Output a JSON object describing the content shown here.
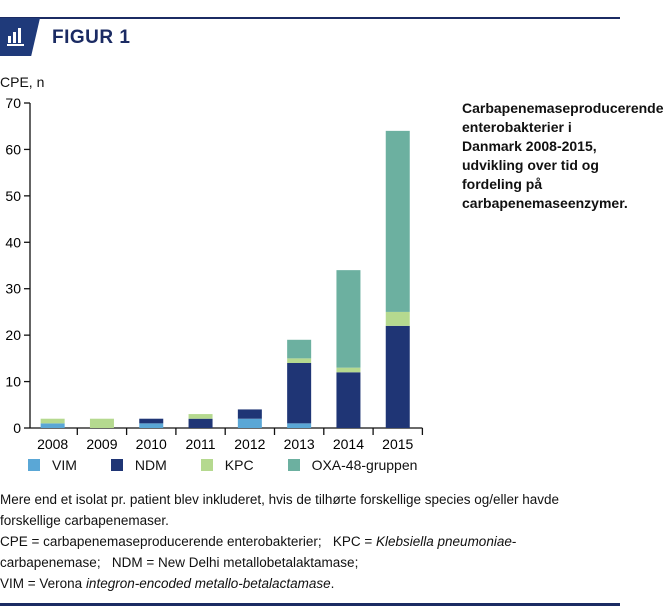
{
  "header": {
    "title": "FIGUR 1",
    "icon": "bar-chart-icon"
  },
  "caption": "Carbapenemaseproducerende enterobakterier i Danmark 2008-2015, udvikling over tid og fordeling på carbapenemaseenzymer.",
  "notes": {
    "line1": "Mere end et isolat pr. patient blev inkluderet, hvis de tilhørte forskellige species og/eller havde forskellige carbapenemaser.",
    "line2": "CPE = carbapenemaseproducerende enterobakterier;",
    "kpc_pre": "KPC = ",
    "kpc_it": "Klebsiella pneumoniae",
    "kpc_post": "-carbapenemase;",
    "ndm": "NDM = New Delhi metallobetalaktamase;",
    "vim_pre": "VIM = Verona ",
    "vim_it": "integron-encoded metallo-betalactamase",
    "vim_post": "."
  },
  "chart_data": {
    "type": "bar",
    "stacked": true,
    "ylabel": "CPE, n",
    "ylim": [
      0,
      70
    ],
    "yticks": [
      0,
      10,
      20,
      30,
      40,
      50,
      60,
      70
    ],
    "categories": [
      "2008",
      "2009",
      "2010",
      "2011",
      "2012",
      "2013",
      "2014",
      "2015"
    ],
    "series": [
      {
        "name": "VIM",
        "color": "#5aa7d6",
        "values": [
          1,
          0,
          1,
          0,
          2,
          1,
          0,
          0
        ]
      },
      {
        "name": "NDM",
        "color": "#1f3575",
        "values": [
          0,
          0,
          1,
          2,
          2,
          13,
          12,
          22
        ]
      },
      {
        "name": "KPC",
        "color": "#b5d98f",
        "values": [
          1,
          2,
          0,
          1,
          0,
          1,
          1,
          3
        ]
      },
      {
        "name": "OXA-48-gruppen",
        "color": "#6cb0a0",
        "values": [
          0,
          0,
          0,
          0,
          0,
          4,
          21,
          39
        ]
      }
    ],
    "grid": false,
    "legend": "bottom"
  }
}
